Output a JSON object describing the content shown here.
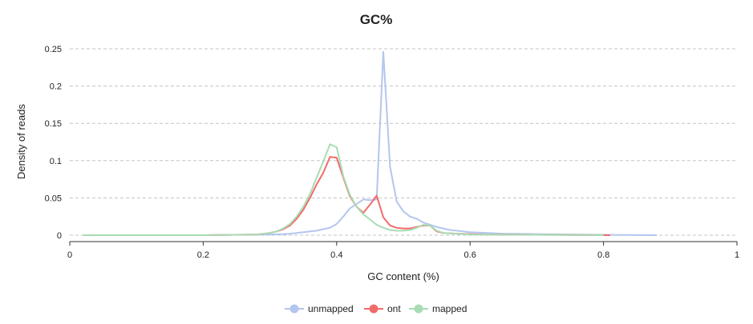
{
  "chart_data": {
    "type": "line",
    "title": "GC%",
    "xlabel": "GC content (%)",
    "ylabel": "Density of reads",
    "xlim": [
      0,
      1
    ],
    "ylim": [
      0,
      0.25
    ],
    "xticks": [
      0,
      0.2,
      0.4,
      0.6,
      0.8,
      1
    ],
    "xtick_labels": [
      "0",
      "0.2",
      "0.4",
      "0.6",
      "0.8",
      "1"
    ],
    "yticks": [
      0,
      0.05,
      0.1,
      0.15,
      0.2,
      0.25
    ],
    "ytick_labels": [
      "0",
      "0.05",
      "0.1",
      "0.15",
      "0.2",
      "0.25"
    ],
    "grid": "horizontal dashed",
    "legend": "bottom-center",
    "series": [
      {
        "name": "unmapped",
        "color": "#b3c6ee",
        "x": [
          0.02,
          0.2,
          0.3,
          0.32,
          0.33,
          0.34,
          0.35,
          0.36,
          0.37,
          0.38,
          0.39,
          0.4,
          0.41,
          0.42,
          0.43,
          0.44,
          0.45,
          0.46,
          0.47,
          0.48,
          0.49,
          0.5,
          0.51,
          0.52,
          0.53,
          0.54,
          0.55,
          0.56,
          0.57,
          0.58,
          0.6,
          0.65,
          0.7,
          0.8,
          0.88
        ],
        "y": [
          0,
          0,
          0.001,
          0.0015,
          0.002,
          0.003,
          0.004,
          0.005,
          0.006,
          0.008,
          0.01,
          0.015,
          0.025,
          0.036,
          0.042,
          0.048,
          0.047,
          0.048,
          0.246,
          0.092,
          0.045,
          0.032,
          0.025,
          0.022,
          0.017,
          0.014,
          0.011,
          0.009,
          0.007,
          0.006,
          0.004,
          0.002,
          0.0015,
          0.0005,
          0
        ]
      },
      {
        "name": "ont",
        "color": "#f26b6b",
        "x": [
          0.02,
          0.2,
          0.28,
          0.3,
          0.31,
          0.32,
          0.33,
          0.34,
          0.35,
          0.36,
          0.37,
          0.38,
          0.39,
          0.4,
          0.41,
          0.42,
          0.43,
          0.44,
          0.45,
          0.46,
          0.47,
          0.48,
          0.49,
          0.5,
          0.51,
          0.52,
          0.53,
          0.54,
          0.55,
          0.56,
          0.58,
          0.62,
          0.7,
          0.81
        ],
        "y": [
          0,
          0,
          0.001,
          0.003,
          0.005,
          0.008,
          0.013,
          0.022,
          0.034,
          0.05,
          0.068,
          0.084,
          0.105,
          0.104,
          0.077,
          0.052,
          0.038,
          0.03,
          0.041,
          0.053,
          0.024,
          0.013,
          0.01,
          0.009,
          0.009,
          0.011,
          0.013,
          0.013,
          0.005,
          0.003,
          0.002,
          0.001,
          0.0005,
          0
        ]
      },
      {
        "name": "mapped",
        "color": "#a8dcb4",
        "x": [
          0.02,
          0.2,
          0.28,
          0.29,
          0.3,
          0.31,
          0.32,
          0.33,
          0.34,
          0.35,
          0.36,
          0.37,
          0.38,
          0.39,
          0.4,
          0.41,
          0.42,
          0.43,
          0.44,
          0.45,
          0.46,
          0.47,
          0.48,
          0.49,
          0.5,
          0.51,
          0.52,
          0.53,
          0.54,
          0.55,
          0.56,
          0.6,
          0.7,
          0.8
        ],
        "y": [
          0,
          0,
          0.001,
          0.002,
          0.003,
          0.005,
          0.009,
          0.015,
          0.025,
          0.038,
          0.055,
          0.077,
          0.099,
          0.122,
          0.118,
          0.079,
          0.054,
          0.038,
          0.028,
          0.021,
          0.014,
          0.01,
          0.007,
          0.006,
          0.006,
          0.007,
          0.01,
          0.014,
          0.013,
          0.006,
          0.003,
          0.001,
          0.0005,
          0
        ]
      }
    ]
  }
}
